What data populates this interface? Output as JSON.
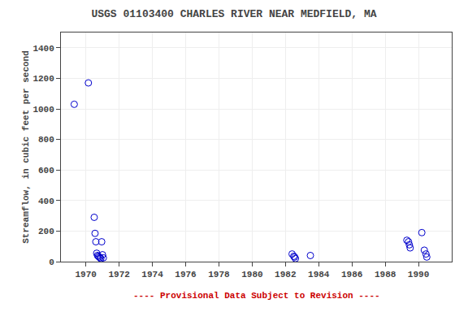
{
  "chart_data": {
    "type": "scatter",
    "title": "USGS 01103400 CHARLES RIVER NEAR MEDFIELD, MA",
    "ylabel": "Streamflow, in cubic feet per second",
    "annotations": [
      {
        "text": "---- Provisional Data Subject to Revision ----",
        "color": "#cc0000"
      }
    ],
    "x": [
      1969.3,
      1970.15,
      1970.5,
      1970.55,
      1970.6,
      1970.65,
      1970.7,
      1970.75,
      1970.8,
      1970.85,
      1970.9,
      1970.95,
      1971.0,
      1971.05,
      1982.4,
      1982.5,
      1982.55,
      1982.6,
      1983.5,
      1989.3,
      1989.4,
      1989.45,
      1989.5,
      1990.2,
      1990.35,
      1990.45,
      1990.5
    ],
    "values": [
      1030,
      1170,
      290,
      185,
      130,
      55,
      40,
      35,
      30,
      25,
      20,
      130,
      45,
      25,
      50,
      35,
      30,
      20,
      40,
      140,
      130,
      110,
      90,
      190,
      75,
      50,
      30
    ],
    "color": "#0000cc",
    "marker": "circle-open",
    "xlim": [
      1968.5,
      1992
    ],
    "ylim": [
      0,
      1500
    ],
    "xticks": [
      1970,
      1972,
      1974,
      1976,
      1978,
      1980,
      1982,
      1984,
      1986,
      1988,
      1990
    ],
    "yticks": [
      0,
      200,
      400,
      600,
      800,
      1000,
      1200,
      1400
    ],
    "grid": true
  }
}
